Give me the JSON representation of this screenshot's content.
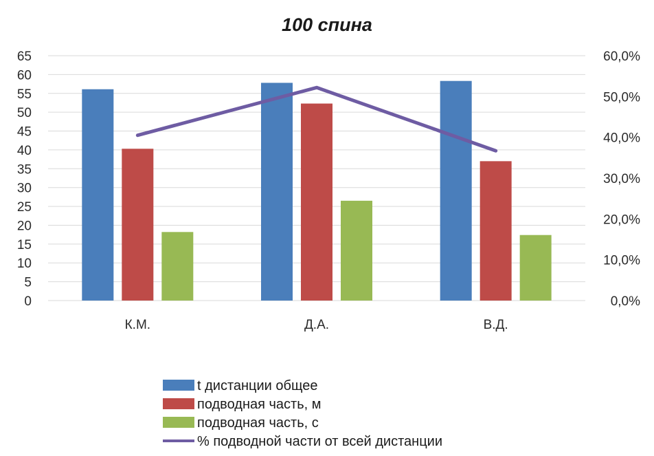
{
  "chart_data": {
    "type": "bar",
    "title": "100 спина",
    "categories": [
      "К.М.",
      "Д.А.",
      "В.Д."
    ],
    "series": [
      {
        "name": "t дистанции общее",
        "kind": "bar",
        "axis": "left",
        "color": "#4a7ebb",
        "values": [
          56.1,
          57.8,
          58.3
        ]
      },
      {
        "name": "подводная часть, м",
        "kind": "bar",
        "axis": "left",
        "color": "#be4b48",
        "values": [
          40.3,
          52.3,
          37.0
        ]
      },
      {
        "name": "подводная часть, с",
        "kind": "bar",
        "axis": "left",
        "color": "#98b954",
        "values": [
          18.2,
          26.5,
          17.4
        ]
      },
      {
        "name": "% подводной части от всей дистанции",
        "kind": "line",
        "axis": "right",
        "color": "#6e5ca3",
        "values": [
          40.5,
          52.2,
          36.7
        ]
      }
    ],
    "y_left": {
      "min": 0,
      "max": 65,
      "ticks": [
        "0",
        "5",
        "10",
        "15",
        "20",
        "25",
        "30",
        "35",
        "40",
        "45",
        "50",
        "55",
        "60",
        "65"
      ]
    },
    "y_right": {
      "min": 0,
      "max": 60,
      "ticks": [
        "0,0%",
        "10,0%",
        "20,0%",
        "30,0%",
        "40,0%",
        "50,0%",
        "60,0%"
      ]
    },
    "grid": true,
    "legend_position": "bottom"
  }
}
